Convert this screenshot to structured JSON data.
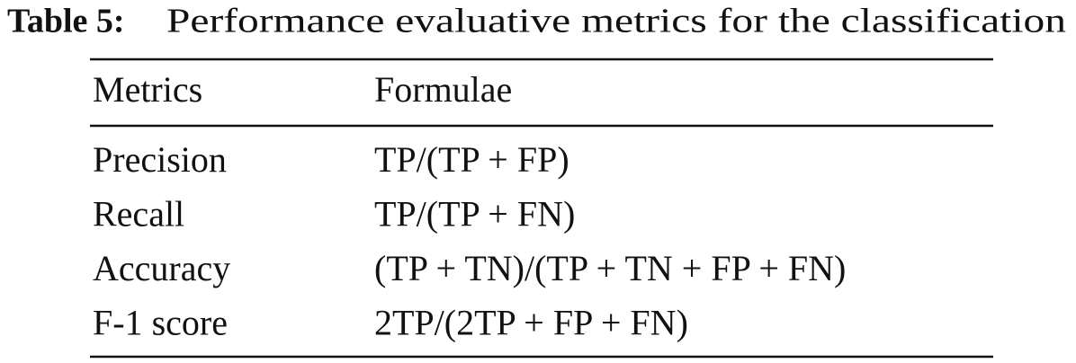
{
  "caption": {
    "label": "Table 5:",
    "text": "Performance evaluative metrics for the classification"
  },
  "table": {
    "header": [
      "Metrics",
      "Formulae"
    ],
    "rows": [
      [
        "Precision",
        "TP/(TP + FP)"
      ],
      [
        "Recall",
        "TP/(TP + FN)"
      ],
      [
        "Accuracy",
        "(TP + TN)/(TP + TN + FP + FN)"
      ],
      [
        "F-1 score",
        "2TP/(2TP + FP + FN)"
      ]
    ]
  }
}
